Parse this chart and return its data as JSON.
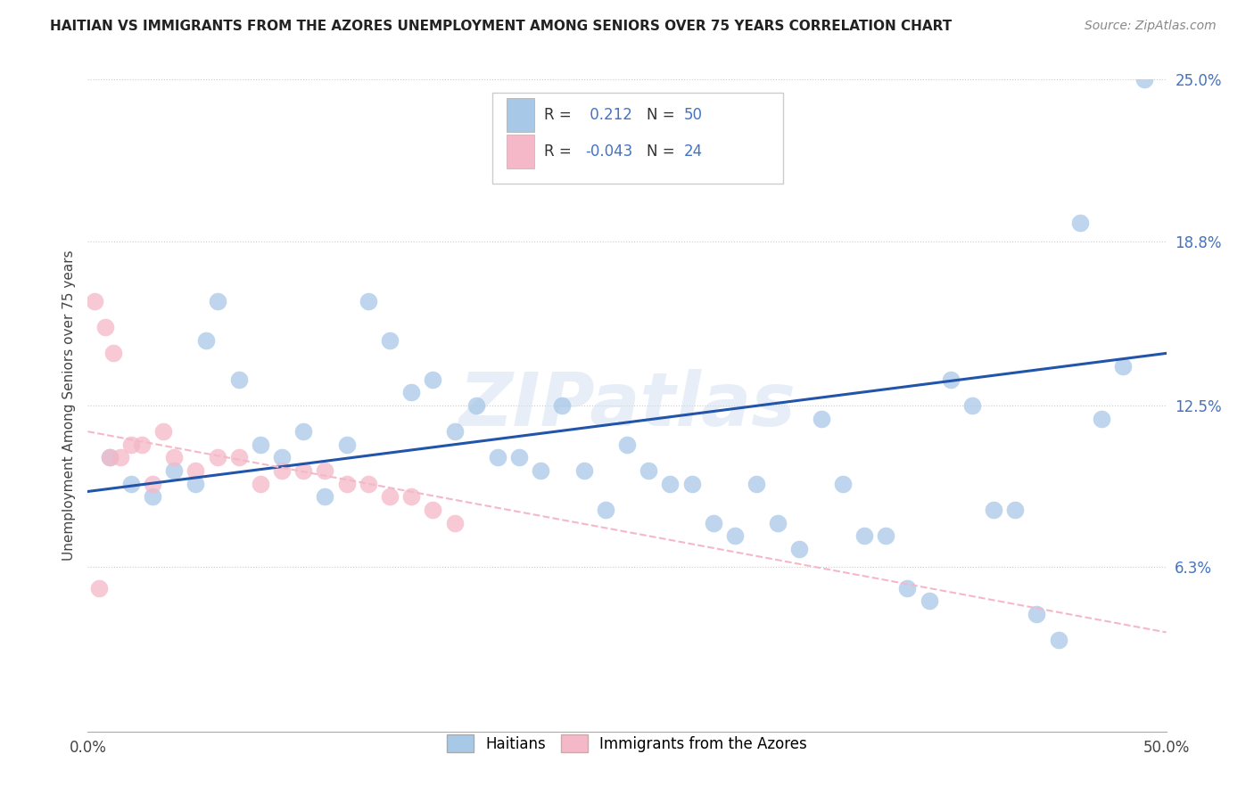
{
  "title": "HAITIAN VS IMMIGRANTS FROM THE AZORES UNEMPLOYMENT AMONG SENIORS OVER 75 YEARS CORRELATION CHART",
  "source": "Source: ZipAtlas.com",
  "ylabel": "Unemployment Among Seniors over 75 years",
  "xlim": [
    0,
    50
  ],
  "ylim": [
    0,
    25
  ],
  "ytick_vals": [
    0,
    6.3,
    12.5,
    18.8,
    25.0
  ],
  "ytick_labels": [
    "",
    "6.3%",
    "12.5%",
    "18.8%",
    "25.0%"
  ],
  "watermark": "ZIPatlas",
  "r_haitian": 0.212,
  "n_haitian": 50,
  "r_azores": -0.043,
  "n_azores": 24,
  "haitian_color": "#a8c8e8",
  "azores_color": "#f4b8c8",
  "haitian_line_color": "#2255aa",
  "azores_line_color": "#f4b8c8",
  "haitian_line_x0": 0,
  "haitian_line_y0": 9.2,
  "haitian_line_x1": 50,
  "haitian_line_y1": 14.5,
  "azores_line_x0": 0,
  "azores_line_y0": 11.5,
  "azores_line_x1": 50,
  "azores_line_y1": 3.8,
  "haitian_x": [
    1.0,
    2.0,
    3.0,
    4.0,
    5.0,
    5.5,
    6.0,
    7.0,
    8.0,
    9.0,
    10.0,
    11.0,
    12.0,
    13.0,
    14.0,
    15.0,
    16.0,
    17.0,
    18.0,
    19.0,
    20.0,
    21.0,
    22.0,
    23.0,
    24.0,
    25.0,
    26.0,
    27.0,
    28.0,
    29.0,
    30.0,
    31.0,
    32.0,
    33.0,
    34.0,
    35.0,
    36.0,
    37.0,
    38.0,
    39.0,
    40.0,
    41.0,
    42.0,
    43.0,
    44.0,
    45.0,
    46.0,
    47.0,
    48.0,
    49.0
  ],
  "haitian_y": [
    10.5,
    9.5,
    9.0,
    10.0,
    9.5,
    15.0,
    16.5,
    13.5,
    11.0,
    10.5,
    11.5,
    9.0,
    11.0,
    16.5,
    15.0,
    13.0,
    13.5,
    11.5,
    12.5,
    10.5,
    10.5,
    10.0,
    12.5,
    10.0,
    8.5,
    11.0,
    10.0,
    9.5,
    9.5,
    8.0,
    7.5,
    9.5,
    8.0,
    7.0,
    12.0,
    9.5,
    7.5,
    7.5,
    5.5,
    5.0,
    13.5,
    12.5,
    8.5,
    8.5,
    4.5,
    3.5,
    19.5,
    12.0,
    14.0,
    25.0
  ],
  "azores_x": [
    0.5,
    1.0,
    1.5,
    2.0,
    2.5,
    3.0,
    3.5,
    4.0,
    5.0,
    6.0,
    7.0,
    8.0,
    9.0,
    10.0,
    11.0,
    12.0,
    13.0,
    14.0,
    15.0,
    16.0,
    17.0,
    0.3,
    0.8,
    1.2
  ],
  "azores_y": [
    5.5,
    10.5,
    10.5,
    11.0,
    11.0,
    9.5,
    11.5,
    10.5,
    10.0,
    10.5,
    10.5,
    9.5,
    10.0,
    10.0,
    10.0,
    9.5,
    9.5,
    9.0,
    9.0,
    8.5,
    8.0,
    16.5,
    15.5,
    14.5
  ]
}
